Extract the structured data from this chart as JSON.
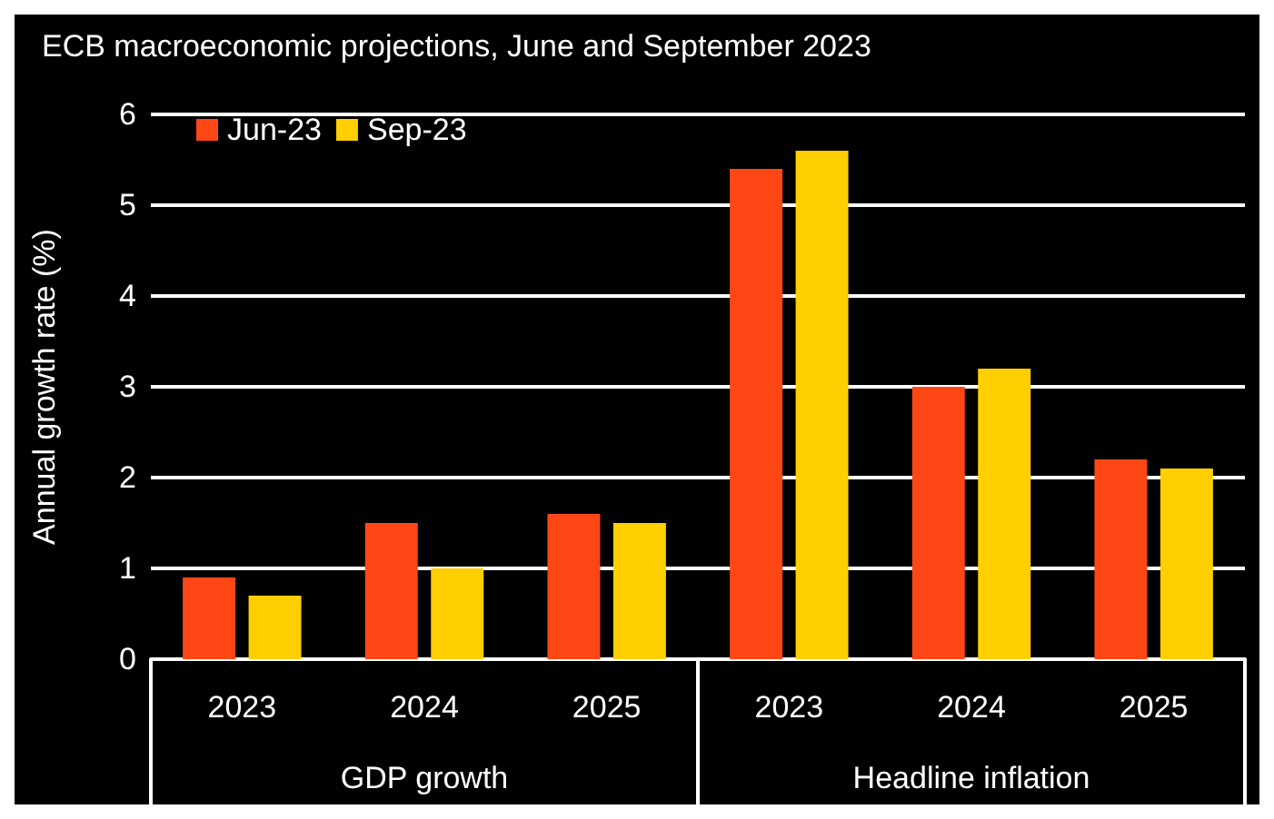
{
  "chart_data": {
    "type": "bar",
    "title": "ECB macroeconomic projections, June and September 2023",
    "ylabel": "Annual growth rate (%)",
    "categories": [
      "2023",
      "2024",
      "2025",
      "2023",
      "2024",
      "2025"
    ],
    "series": [
      {
        "name": "Jun-23",
        "color": "#ff4716",
        "values": [
          0.9,
          1.5,
          1.6,
          5.4,
          3.0,
          2.2
        ]
      },
      {
        "name": "Sep-23",
        "color": "#ffcf00",
        "values": [
          0.7,
          1.0,
          1.5,
          5.6,
          3.2,
          2.1
        ]
      }
    ],
    "annotations": [
      "GDP growth",
      "Headline inflation"
    ],
    "ylim": [
      0,
      6
    ],
    "yticks": [
      0,
      1,
      2,
      3,
      4,
      5,
      6
    ],
    "grid": "y",
    "legend": "top left"
  }
}
